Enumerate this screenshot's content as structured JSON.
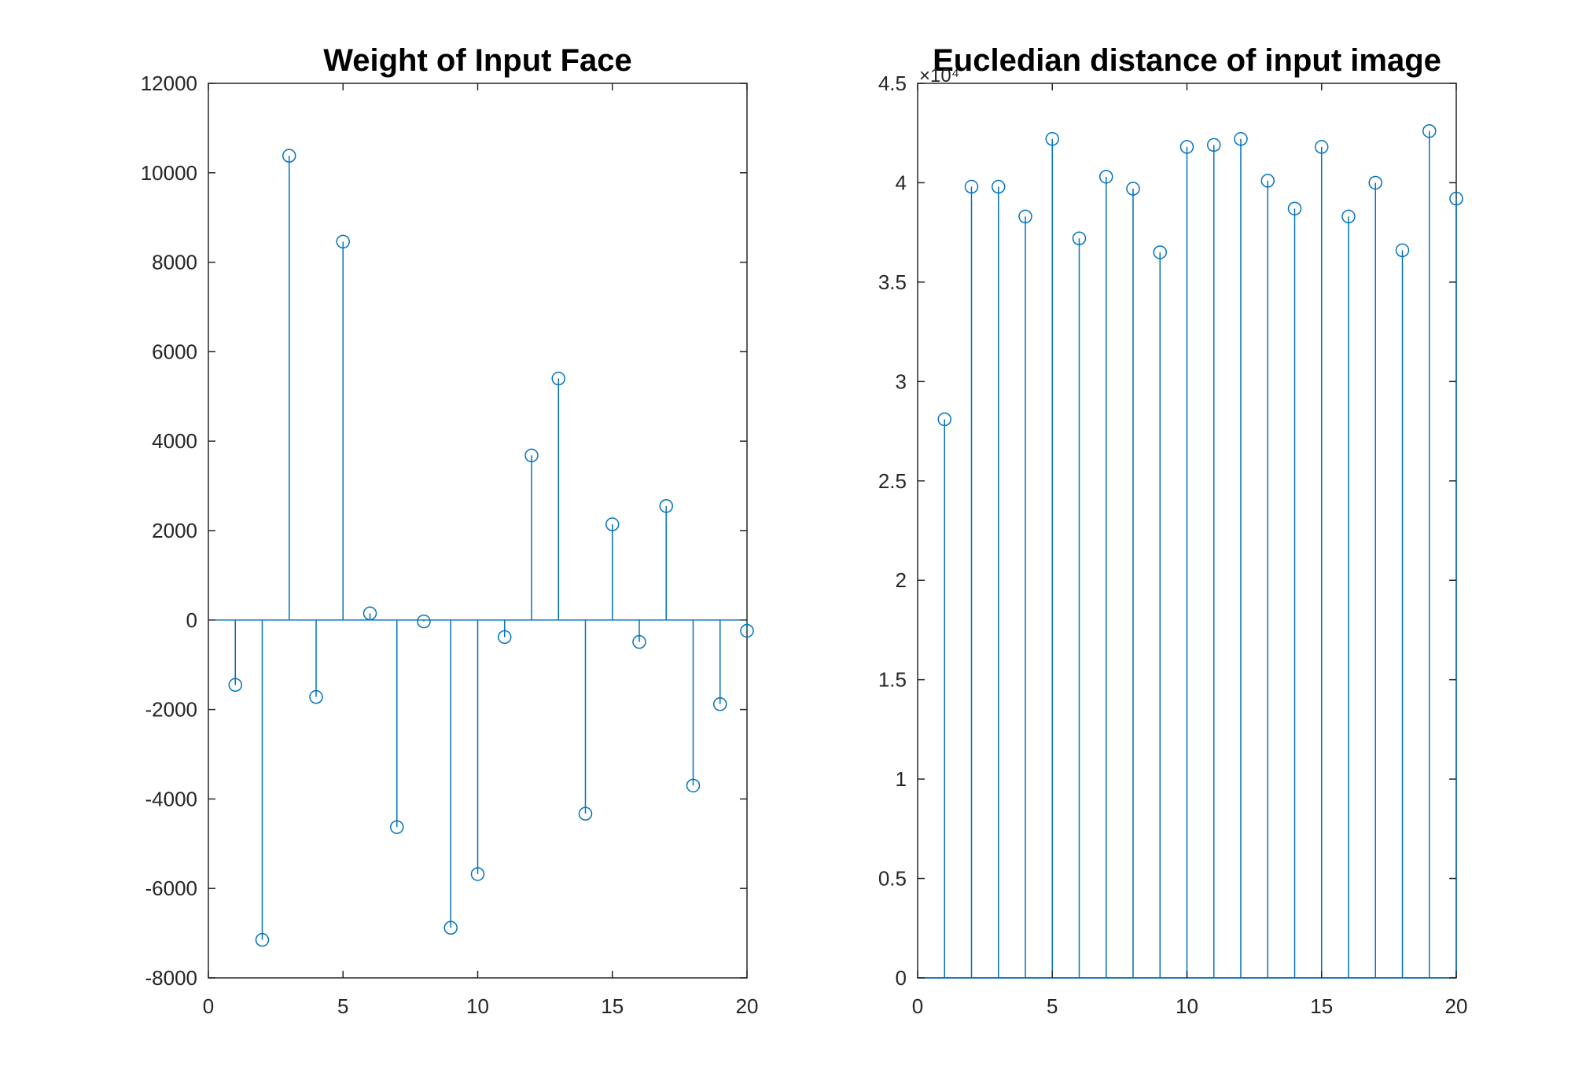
{
  "colors": {
    "series": "#0072BD",
    "axis": "#262626",
    "background": "#ffffff"
  },
  "marker": "circle",
  "chart_data": [
    {
      "type": "stem",
      "title": "Weight of Input Face",
      "xlabel": "",
      "ylabel": "",
      "xlim": [
        0,
        20
      ],
      "ylim": [
        -8000,
        12000
      ],
      "x_ticks": [
        0,
        5,
        10,
        15,
        20
      ],
      "x_tick_labels": [
        "0",
        "5",
        "10",
        "15",
        "20"
      ],
      "y_ticks": [
        -8000,
        -6000,
        -4000,
        -2000,
        0,
        2000,
        4000,
        6000,
        8000,
        10000,
        12000
      ],
      "y_tick_labels": [
        "-8000",
        "-6000",
        "-4000",
        "-2000",
        "0",
        "2000",
        "4000",
        "6000",
        "8000",
        "10000",
        "12000"
      ],
      "y_exponent_label": "",
      "grid": false,
      "baseline": 0,
      "x": [
        1,
        2,
        3,
        4,
        5,
        6,
        7,
        8,
        9,
        10,
        11,
        12,
        13,
        14,
        15,
        16,
        17,
        18,
        19,
        20
      ],
      "values": [
        -1450,
        -7150,
        10380,
        -1720,
        8460,
        150,
        -4630,
        -30,
        -6880,
        -5680,
        -380,
        3680,
        5400,
        -4330,
        2140,
        -490,
        2550,
        -3700,
        -1880,
        -240
      ]
    },
    {
      "type": "stem",
      "title": "Eucledian distance of input image",
      "xlabel": "",
      "ylabel": "",
      "xlim": [
        0,
        20
      ],
      "ylim": [
        0,
        4.5
      ],
      "x_ticks": [
        0,
        5,
        10,
        15,
        20
      ],
      "x_tick_labels": [
        "0",
        "5",
        "10",
        "15",
        "20"
      ],
      "y_ticks": [
        0,
        0.5,
        1,
        1.5,
        2,
        2.5,
        3,
        3.5,
        4,
        4.5
      ],
      "y_tick_labels": [
        "0",
        "0.5",
        "1",
        "1.5",
        "2",
        "2.5",
        "3",
        "3.5",
        "4",
        "4.5"
      ],
      "y_exponent_label": "×10⁴",
      "grid": false,
      "baseline": 0,
      "x": [
        1,
        2,
        3,
        4,
        5,
        6,
        7,
        8,
        9,
        10,
        11,
        12,
        13,
        14,
        15,
        16,
        17,
        18,
        19,
        20
      ],
      "values": [
        2.81,
        3.98,
        3.98,
        3.83,
        4.22,
        3.72,
        4.03,
        3.97,
        3.65,
        4.18,
        4.19,
        4.22,
        4.01,
        3.87,
        4.18,
        3.83,
        4.0,
        3.66,
        4.26,
        3.92
      ]
    }
  ]
}
